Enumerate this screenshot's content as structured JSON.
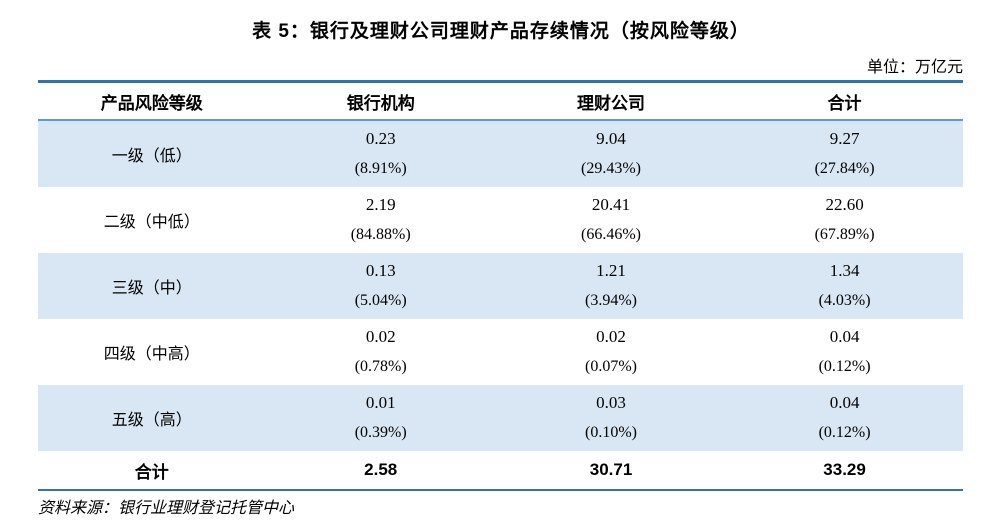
{
  "title": "表 5：银行及理财公司理财产品存续情况（按风险等级）",
  "unit_label": "单位：万亿元",
  "table": {
    "headers": [
      "产品风险等级",
      "银行机构",
      "理财公司",
      "合计"
    ],
    "rows": [
      {
        "label": "一级（低）",
        "cells": [
          {
            "value": "0.23",
            "pct": "(8.91%)"
          },
          {
            "value": "9.04",
            "pct": "(29.43%)"
          },
          {
            "value": "9.27",
            "pct": "(27.84%)"
          }
        ]
      },
      {
        "label": "二级（中低）",
        "cells": [
          {
            "value": "2.19",
            "pct": "(84.88%)"
          },
          {
            "value": "20.41",
            "pct": "(66.46%)"
          },
          {
            "value": "22.60",
            "pct": "(67.89%)"
          }
        ]
      },
      {
        "label": "三级（中）",
        "cells": [
          {
            "value": "0.13",
            "pct": "(5.04%)"
          },
          {
            "value": "1.21",
            "pct": "(3.94%)"
          },
          {
            "value": "1.34",
            "pct": "(4.03%)"
          }
        ]
      },
      {
        "label": "四级（中高）",
        "cells": [
          {
            "value": "0.02",
            "pct": "(0.78%)"
          },
          {
            "value": "0.02",
            "pct": "(0.07%)"
          },
          {
            "value": "0.04",
            "pct": "(0.12%)"
          }
        ]
      },
      {
        "label": "五级（高）",
        "cells": [
          {
            "value": "0.01",
            "pct": "(0.39%)"
          },
          {
            "value": "0.03",
            "pct": "(0.10%)"
          },
          {
            "value": "0.04",
            "pct": "(0.12%)"
          }
        ]
      }
    ],
    "total_row": {
      "label": "合计",
      "values": [
        "2.58",
        "30.71",
        "33.29"
      ]
    }
  },
  "source": "资料来源：银行业理财登记托管中心",
  "colors": {
    "border_dark": "#2e74b5",
    "border_light": "#5b9bd5",
    "stripe": "#d9e7f4",
    "text": "#000000"
  }
}
